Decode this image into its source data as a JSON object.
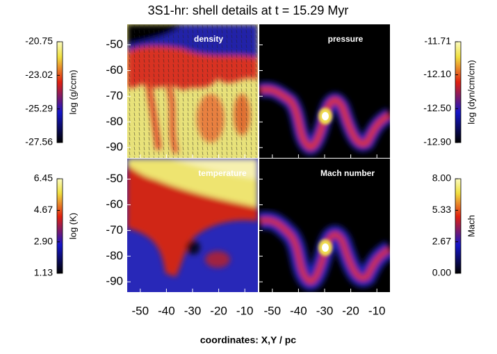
{
  "title": "3S1-hr: shell details at t = 15.29 Myr",
  "x_label": "coordinates: X,Y / pc",
  "axes": {
    "xlim": [
      -55,
      -5
    ],
    "ylim": [
      -42,
      -94
    ],
    "xticks": [
      -50,
      -40,
      -30,
      -20,
      -10
    ],
    "yticks": [
      -50,
      -60,
      -70,
      -80,
      -90
    ]
  },
  "panels": [
    {
      "label": "density",
      "colorbar": {
        "label": "log (g/ccm)",
        "lim": [
          -27.56,
          -20.75
        ],
        "ticks": [
          -20.75,
          -23.02,
          -25.29,
          -27.56
        ]
      }
    },
    {
      "label": "pressure",
      "colorbar": {
        "label": "log (dyn/cm/cm)",
        "lim": [
          -12.9,
          -11.71
        ],
        "ticks": [
          -11.71,
          {
            "value": -12.1,
            "label": "-12.10"
          },
          {
            "value": -12.5,
            "label": "-12.50"
          },
          {
            "value": -12.9,
            "label": "-12.90"
          }
        ]
      }
    },
    {
      "label": "temperature",
      "colorbar": {
        "label": "log (K)",
        "lim": [
          1.13,
          6.45
        ],
        "ticks": [
          6.45,
          4.67,
          {
            "value": 2.9,
            "label": "2.90"
          },
          1.13
        ]
      }
    },
    {
      "label": "Mach number",
      "colorbar": {
        "label": "Mach",
        "lim": [
          0,
          8
        ],
        "ticks": [
          {
            "value": 8,
            "label": "8.00"
          },
          5.33,
          2.67,
          {
            "value": 0,
            "label": "0.00"
          }
        ]
      }
    }
  ]
}
